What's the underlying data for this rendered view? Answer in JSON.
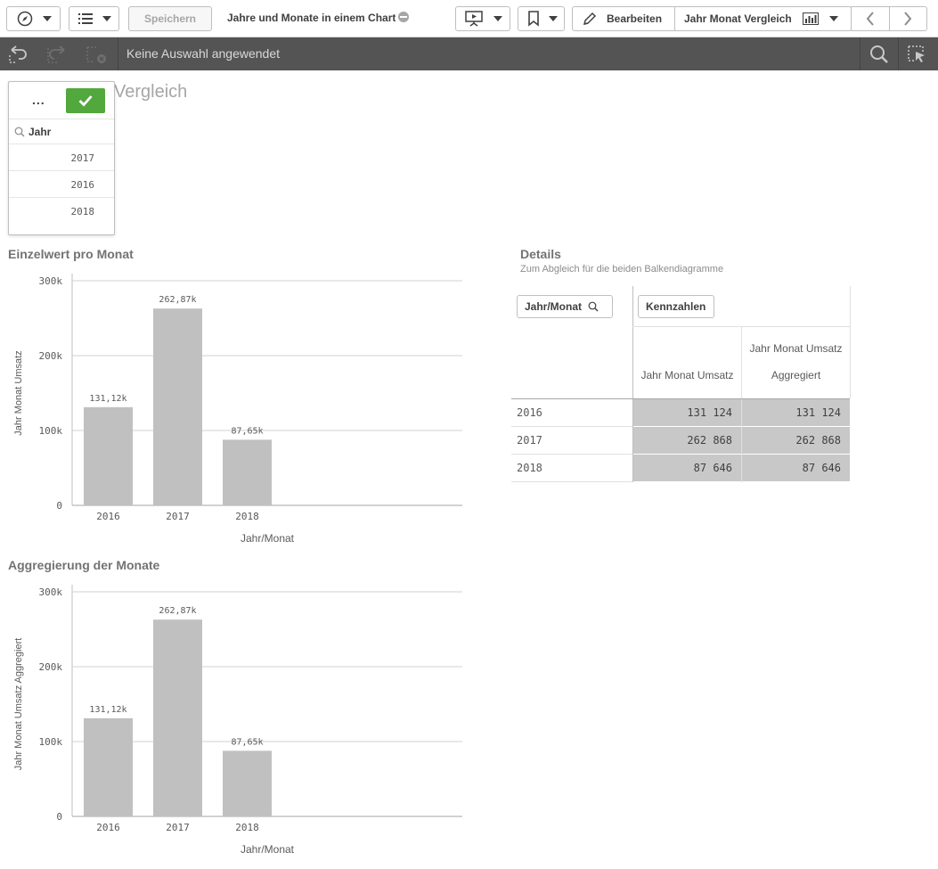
{
  "toolbar": {
    "save_label": "Speichern",
    "app_title": "Jahre und Monate in einem Chart",
    "edit_label": "Bearbeiten",
    "sheet_label": "Jahr Monat Vergleich"
  },
  "selection_bar": {
    "text": "Keine Auswahl angewendet"
  },
  "sheet": {
    "title": "Vergleich"
  },
  "listbox": {
    "field_label": "Jahr",
    "more_label": "...",
    "values": [
      "2017",
      "2016",
      "2018"
    ]
  },
  "chart_data": [
    {
      "type": "bar",
      "title": "Einzelwert pro Monat",
      "categories": [
        "2016",
        "2017",
        "2018"
      ],
      "values": [
        131124,
        262868,
        87646
      ],
      "data_labels": [
        "131,12k",
        "262,87k",
        "87,65k"
      ],
      "xlabel": "Jahr/Monat",
      "ylabel": "Jahr Monat Umsatz",
      "yticks": [
        0,
        100000,
        200000,
        300000
      ],
      "ytick_labels": [
        "0",
        "100k",
        "200k",
        "300k"
      ],
      "ylim": [
        0,
        300000
      ],
      "grid": true,
      "color": "#c0c0c0"
    },
    {
      "type": "bar",
      "title": "Aggregierung der Monate",
      "categories": [
        "2016",
        "2017",
        "2018"
      ],
      "values": [
        131124,
        262868,
        87646
      ],
      "data_labels": [
        "131,12k",
        "262,87k",
        "87,65k"
      ],
      "xlabel": "Jahr/Monat",
      "ylabel": "Jahr Monat Umsatz Aggregiert",
      "yticks": [
        0,
        100000,
        200000,
        300000
      ],
      "ytick_labels": [
        "0",
        "100k",
        "200k",
        "300k"
      ],
      "ylim": [
        0,
        300000
      ],
      "grid": true,
      "color": "#c0c0c0"
    }
  ],
  "details": {
    "title": "Details",
    "subtitle": "Zum Abgleich für die beiden Balkendiagramme",
    "dim_button": "Jahr/Monat",
    "measures_button": "Kennzahlen",
    "col1": "Jahr Monat Umsatz",
    "col2_line1": "Jahr Monat Umsatz",
    "col2_line2": "Aggregiert",
    "rows": [
      {
        "dim": "2016",
        "v1": "131 124",
        "v2": "131 124"
      },
      {
        "dim": "2017",
        "v1": "262 868",
        "v2": "262 868"
      },
      {
        "dim": "2018",
        "v1": "87 646",
        "v2": "87 646"
      }
    ]
  },
  "colors": {
    "accent_green": "#52a83c",
    "selection_bar": "#545454",
    "bar": "#c0c0c0",
    "cell": "#c8c8c8"
  }
}
